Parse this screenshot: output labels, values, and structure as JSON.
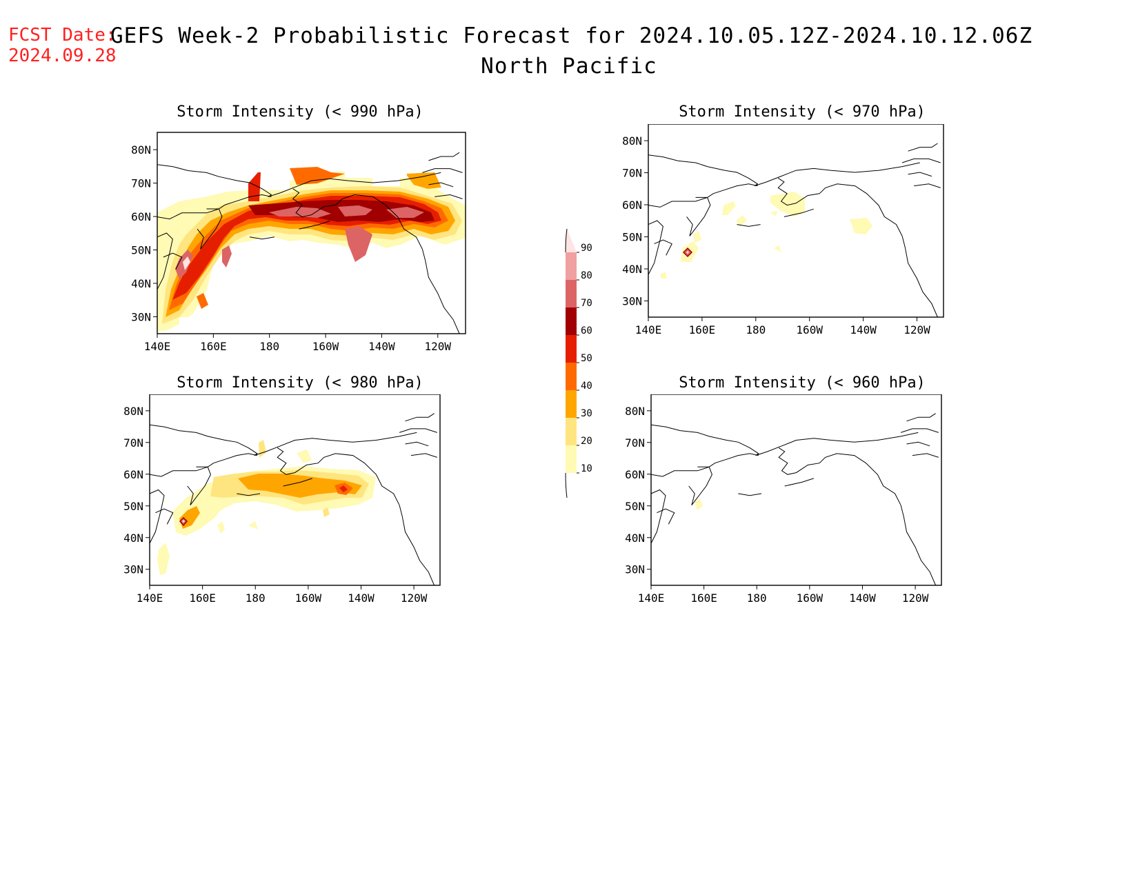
{
  "forecast_date": {
    "label": "FCST Date:",
    "value": "2024.09.28"
  },
  "title": {
    "line1": "GEFS Week-2 Probabilistic Forecast for 2024.10.05.12Z-2024.10.12.06Z",
    "line2": "North Pacific"
  },
  "axes": {
    "lat_labels": [
      "80N",
      "70N",
      "60N",
      "50N",
      "40N",
      "30N"
    ],
    "lon_labels": [
      "140E",
      "160E",
      "180",
      "160W",
      "140W",
      "120W"
    ]
  },
  "colorbar": {
    "levels": [
      "10",
      "20",
      "30",
      "40",
      "50",
      "60",
      "70",
      "80",
      "90"
    ],
    "colors": [
      "#fffab4",
      "#ffe57f",
      "#ffa500",
      "#ff6a00",
      "#e61e00",
      "#a00000",
      "#dc6464",
      "#f0a0a0",
      "#ffe4e4"
    ]
  },
  "panels": [
    {
      "id": "990",
      "title": "Storm Intensity (< 990 hPa)"
    },
    {
      "id": "970",
      "title": "Storm Intensity (< 970 hPa)"
    },
    {
      "id": "980",
      "title": "Storm Intensity (< 980 hPa)"
    },
    {
      "id": "960",
      "title": "Storm Intensity (< 960 hPa)"
    }
  ]
}
